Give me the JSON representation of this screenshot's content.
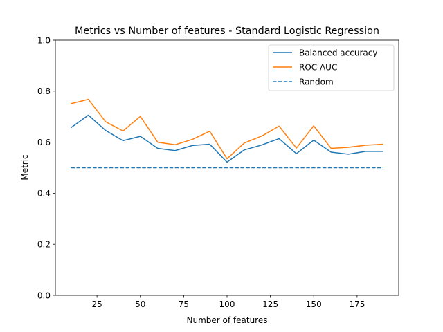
{
  "chart_data": {
    "type": "line",
    "title": "Metrics vs Number of features - Standard Logistic Regression",
    "xlabel": "Number of features",
    "ylabel": "Metric",
    "xlim": [
      1,
      199
    ],
    "ylim": [
      0,
      1.0
    ],
    "xticks": [
      25,
      50,
      75,
      100,
      125,
      150,
      175
    ],
    "xtick_labels": [
      "25",
      "50",
      "75",
      "100",
      "125",
      "150",
      "175"
    ],
    "yticks": [
      0,
      0.2,
      0.4,
      0.6,
      0.8,
      1.0
    ],
    "ytick_labels": [
      "0.0",
      "0.2",
      "0.4",
      "0.6",
      "0.8",
      "1.0"
    ],
    "grid": false,
    "legend_position": "top-right",
    "x": [
      10,
      20,
      30,
      40,
      50,
      60,
      70,
      80,
      90,
      100,
      110,
      120,
      130,
      140,
      150,
      160,
      170,
      180,
      190
    ],
    "series": [
      {
        "name": "Balanced accuracy",
        "color": "#1f77b4",
        "style": "solid",
        "values": [
          0.657,
          0.706,
          0.646,
          0.606,
          0.623,
          0.576,
          0.567,
          0.587,
          0.592,
          0.522,
          0.57,
          0.589,
          0.614,
          0.555,
          0.608,
          0.561,
          0.553,
          0.564,
          0.564
        ]
      },
      {
        "name": "ROC AUC",
        "color": "#ff7f0e",
        "style": "solid",
        "values": [
          0.751,
          0.768,
          0.68,
          0.644,
          0.701,
          0.6,
          0.59,
          0.611,
          0.643,
          0.535,
          0.597,
          0.624,
          0.663,
          0.577,
          0.664,
          0.576,
          0.58,
          0.588,
          0.592
        ]
      },
      {
        "name": "Random",
        "color": "#1f77b4",
        "style": "dashed",
        "values": [
          0.5,
          0.5,
          0.5,
          0.5,
          0.5,
          0.5,
          0.5,
          0.5,
          0.5,
          0.5,
          0.5,
          0.5,
          0.5,
          0.5,
          0.5,
          0.5,
          0.5,
          0.5,
          0.5
        ]
      }
    ]
  }
}
